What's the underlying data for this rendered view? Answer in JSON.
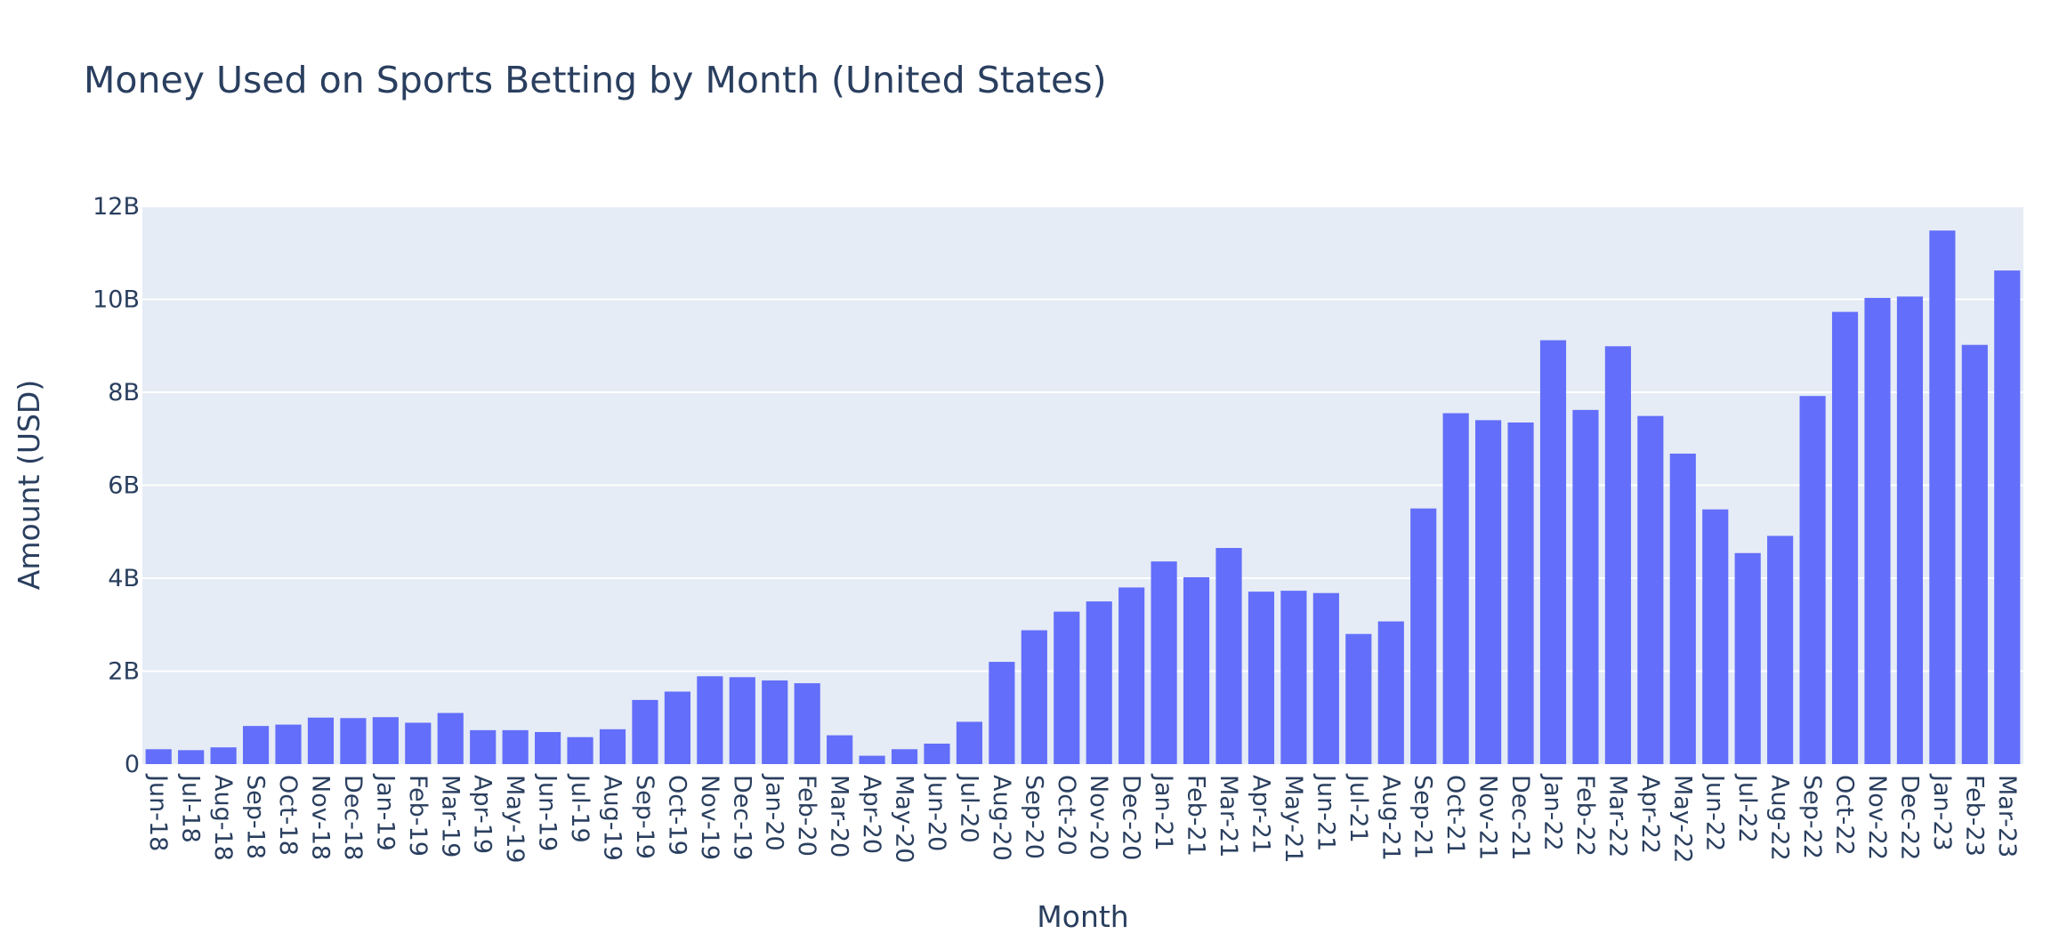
{
  "chart_data": {
    "type": "bar",
    "title": "Money Used on Sports Betting by Month (United States)",
    "xlabel": "Month",
    "ylabel": "Amount (USD)",
    "ylim": [
      0,
      12000000000
    ],
    "yticks": [
      0,
      2000000000,
      4000000000,
      6000000000,
      8000000000,
      10000000000,
      12000000000
    ],
    "ytick_labels": [
      "0",
      "2B",
      "4B",
      "6B",
      "8B",
      "10B",
      "12B"
    ],
    "grid": true,
    "bar_color": "#636efa",
    "plot_bgcolor": "#e5ecf6",
    "categories": [
      "Jun-18",
      "Jul-18",
      "Aug-18",
      "Sep-18",
      "Oct-18",
      "Nov-18",
      "Dec-18",
      "Jan-19",
      "Feb-19",
      "Mar-19",
      "Apr-19",
      "May-19",
      "Jun-19",
      "Jul-19",
      "Aug-19",
      "Sep-19",
      "Oct-19",
      "Nov-19",
      "Dec-19",
      "Jan-20",
      "Feb-20",
      "Mar-20",
      "Apr-20",
      "May-20",
      "Jun-20",
      "Jul-20",
      "Aug-20",
      "Sep-20",
      "Oct-20",
      "Nov-20",
      "Dec-20",
      "Jan-21",
      "Feb-21",
      "Mar-21",
      "Apr-21",
      "May-21",
      "Jun-21",
      "Jul-21",
      "Aug-21",
      "Sep-21",
      "Oct-21",
      "Nov-21",
      "Dec-21",
      "Jan-22",
      "Feb-22",
      "Mar-22",
      "Apr-22",
      "May-22",
      "Jun-22",
      "Jul-22",
      "Aug-22",
      "Sep-22",
      "Oct-22",
      "Nov-22",
      "Dec-22",
      "Jan-23",
      "Feb-23",
      "Mar-23"
    ],
    "values": [
      320000000,
      300000000,
      360000000,
      820000000,
      850000000,
      1000000000,
      990000000,
      1010000000,
      890000000,
      1100000000,
      730000000,
      730000000,
      690000000,
      580000000,
      750000000,
      1380000000,
      1560000000,
      1890000000,
      1870000000,
      1800000000,
      1740000000,
      620000000,
      180000000,
      320000000,
      440000000,
      910000000,
      2200000000,
      2880000000,
      3280000000,
      3500000000,
      3800000000,
      4360000000,
      4020000000,
      4650000000,
      3710000000,
      3730000000,
      3680000000,
      2800000000,
      3070000000,
      5500000000,
      7550000000,
      7400000000,
      7350000000,
      9120000000,
      7620000000,
      8990000000,
      7490000000,
      6680000000,
      5480000000,
      4540000000,
      4910000000,
      7920000000,
      9730000000,
      10030000000,
      10060000000,
      11480000000,
      9020000000,
      10620000000
    ]
  }
}
